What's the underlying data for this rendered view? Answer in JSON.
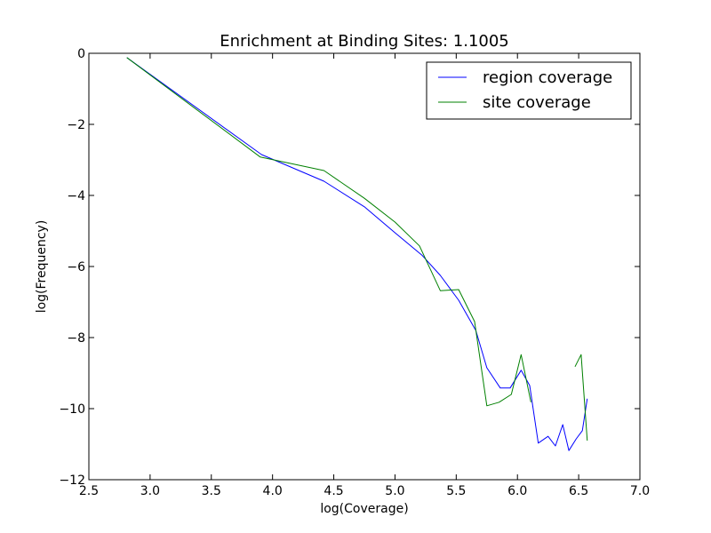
{
  "chart_data": {
    "type": "line",
    "title": "Enrichment at Binding Sites: 1.1005",
    "xlabel": "log(Coverage)",
    "ylabel": "log(Frequency)",
    "xlim": [
      2.5,
      7.0
    ],
    "ylim": [
      -12,
      0
    ],
    "xticks": [
      2.5,
      3.0,
      3.5,
      4.0,
      4.5,
      5.0,
      5.5,
      6.0,
      6.5,
      7.0
    ],
    "xtick_labels": [
      "2.5",
      "3.0",
      "3.5",
      "4.0",
      "4.5",
      "5.0",
      "5.5",
      "6.0",
      "6.5",
      "7.0"
    ],
    "yticks": [
      0,
      -2,
      -4,
      -6,
      -8,
      -10,
      -12
    ],
    "ytick_labels": [
      "0",
      "−2",
      "−4",
      "−6",
      "−8",
      "−10",
      "−12"
    ],
    "grid": false,
    "legend_position": "top-right",
    "series": [
      {
        "name": "region coverage",
        "color": "#0000ff",
        "segments": [
          [
            [
              2.81,
              -0.12
            ],
            [
              3.91,
              -2.85
            ],
            [
              4.42,
              -3.6
            ],
            [
              4.75,
              -4.32
            ],
            [
              5.0,
              -5.05
            ],
            [
              5.22,
              -5.68
            ],
            [
              5.37,
              -6.25
            ],
            [
              5.52,
              -6.95
            ],
            [
              5.66,
              -7.8
            ],
            [
              5.75,
              -8.85
            ],
            [
              5.86,
              -9.42
            ],
            [
              5.94,
              -9.42
            ],
            [
              6.03,
              -8.92
            ],
            [
              6.1,
              -9.35
            ],
            [
              6.17,
              -10.97
            ],
            [
              6.25,
              -10.78
            ],
            [
              6.31,
              -11.05
            ],
            [
              6.37,
              -10.45
            ],
            [
              6.42,
              -11.18
            ],
            [
              6.48,
              -10.85
            ],
            [
              6.53,
              -10.62
            ],
            [
              6.57,
              -9.72
            ]
          ]
        ]
      },
      {
        "name": "site coverage",
        "color": "#008000",
        "segments": [
          [
            [
              2.81,
              -0.12
            ],
            [
              3.9,
              -2.92
            ],
            [
              4.42,
              -3.3
            ],
            [
              4.75,
              -4.08
            ],
            [
              5.0,
              -4.75
            ],
            [
              5.2,
              -5.42
            ],
            [
              5.37,
              -6.68
            ],
            [
              5.52,
              -6.65
            ],
            [
              5.65,
              -7.55
            ],
            [
              5.75,
              -9.92
            ],
            [
              5.85,
              -9.82
            ],
            [
              5.95,
              -9.6
            ],
            [
              6.03,
              -8.48
            ],
            [
              6.11,
              -9.82
            ]
          ],
          [
            [
              6.47,
              -8.82
            ],
            [
              6.52,
              -8.48
            ],
            [
              6.57,
              -10.9
            ]
          ]
        ]
      }
    ]
  }
}
